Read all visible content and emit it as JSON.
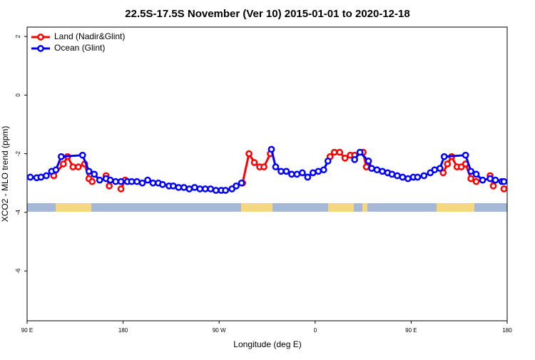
{
  "chart_data": {
    "type": "line",
    "title": "22.5S-17.5S November (Ver 10)   2015-01-01 to 2020-12-18",
    "x_label": "Longitude (deg E)",
    "y_label": "XCO2 - MLO trend (ppm)",
    "xlim": [
      90,
      540
    ],
    "ylim": [
      -7.7,
      2.32
    ],
    "xticks": [
      {
        "value": 90,
        "label": "90 E"
      },
      {
        "value": 180,
        "label": "180"
      },
      {
        "value": 270,
        "label": "90 W"
      },
      {
        "value": 360,
        "label": "0"
      },
      {
        "value": 450,
        "label": "90 E"
      },
      {
        "value": 540,
        "label": "180"
      }
    ],
    "yticks": [
      2,
      0,
      -2,
      -4,
      -6
    ],
    "legend": "top-left",
    "series": [
      {
        "name": "Land (Nadir&Glint)",
        "color": "#ff0000",
        "x": [
          115,
          124,
          128,
          133,
          138,
          144,
          148,
          151,
          null,
          164,
          167,
          null,
          178,
          182,
          null,
          292,
          298,
          303,
          308,
          312,
          318,
          null,
          374,
          378,
          383,
          388,
          393,
          397,
          405,
          408,
          null,
          480,
          484,
          488,
          493,
          497,
          501,
          506,
          511,
          null,
          524,
          527,
          null,
          537
        ],
        "values": [
          -2.75,
          -2.35,
          -2.1,
          -2.45,
          -2.45,
          -2.35,
          -2.85,
          -2.95,
          null,
          -2.75,
          -3.1,
          null,
          -3.2,
          -2.9,
          null,
          -3.0,
          -2.0,
          -2.3,
          -2.45,
          -2.45,
          -2.0,
          null,
          -2.1,
          -1.95,
          -1.95,
          -2.15,
          -2.05,
          -2.05,
          -1.95,
          -2.45,
          null,
          -2.65,
          -2.35,
          -2.1,
          -2.45,
          -2.45,
          -2.35,
          -2.85,
          -2.95,
          null,
          -2.75,
          -3.1,
          null,
          -3.2
        ]
      },
      {
        "name": "Ocean (Glint)",
        "color": "#0000ff",
        "x": [
          93,
          99,
          103,
          108,
          113,
          117,
          122,
          142,
          148,
          153,
          158,
          164,
          168,
          173,
          178,
          184,
          188,
          193,
          198,
          203,
          208,
          213,
          217,
          223,
          227,
          232,
          237,
          242,
          247,
          252,
          257,
          262,
          267,
          272,
          276,
          282,
          286,
          291,
          null,
          319,
          323,
          328,
          333,
          338,
          343,
          348,
          353,
          358,
          363,
          368,
          372,
          null,
          397,
          402,
          410,
          413,
          418,
          423,
          428,
          432,
          437,
          442,
          447,
          452,
          456,
          462,
          468,
          472,
          477,
          481,
          501,
          506,
          511,
          517,
          524,
          529,
          535,
          537
        ],
        "values": [
          -2.8,
          -2.82,
          -2.8,
          -2.75,
          -2.6,
          -2.55,
          -2.1,
          -2.05,
          -2.6,
          -2.7,
          -2.9,
          -2.85,
          -2.9,
          -2.95,
          -2.95,
          -2.95,
          -2.95,
          -2.95,
          -3.0,
          -2.9,
          -3.0,
          -3.0,
          -3.05,
          -3.1,
          -3.1,
          -3.15,
          -3.15,
          -3.2,
          -3.15,
          -3.2,
          -3.2,
          -3.2,
          -3.25,
          -3.25,
          -3.25,
          -3.2,
          -3.1,
          -3.0,
          null,
          -1.85,
          -2.45,
          -2.6,
          -2.6,
          -2.7,
          -2.7,
          -2.65,
          -2.8,
          -2.65,
          -2.6,
          -2.55,
          -2.25,
          null,
          -2.2,
          -1.95,
          -2.25,
          -2.5,
          -2.55,
          -2.6,
          -2.65,
          -2.7,
          -2.75,
          -2.8,
          -2.85,
          -2.8,
          -2.8,
          -2.75,
          -2.65,
          -2.55,
          -2.5,
          -2.1,
          -2.05,
          -2.6,
          -2.7,
          -2.9,
          -2.85,
          -2.9,
          -2.95,
          -2.95
        ]
      }
    ]
  }
}
